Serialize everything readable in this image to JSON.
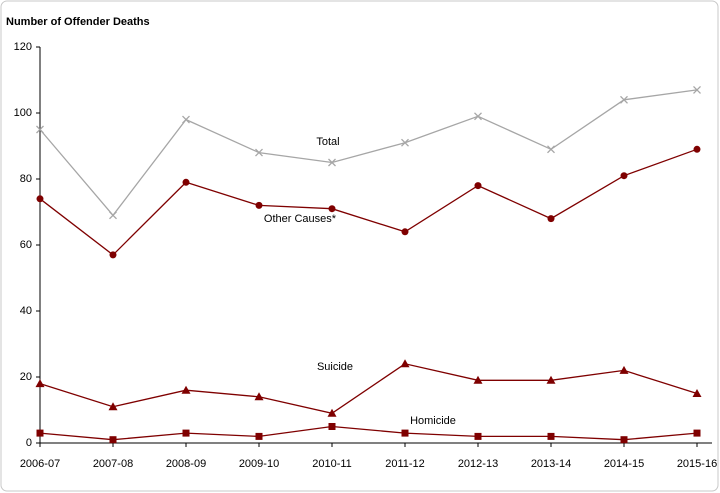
{
  "chart_data": {
    "type": "line",
    "title": "Number of Offender Deaths",
    "categories": [
      "2006-07",
      "2007-08",
      "2008-09",
      "2009-10",
      "2010-11",
      "2011-12",
      "2012-13",
      "2013-14",
      "2014-15",
      "2015-16"
    ],
    "series": [
      {
        "name": "Total",
        "color": "#a6a6a6",
        "marker": "x",
        "values": [
          95,
          69,
          98,
          88,
          85,
          91,
          99,
          89,
          104,
          107
        ]
      },
      {
        "name": "Other Causes*",
        "color": "#7f0000",
        "marker": "circle",
        "values": [
          74,
          57,
          79,
          72,
          71,
          64,
          78,
          68,
          81,
          89
        ]
      },
      {
        "name": "Suicide",
        "color": "#7f0000",
        "marker": "triangle",
        "values": [
          18,
          11,
          16,
          14,
          9,
          24,
          19,
          19,
          22,
          15
        ]
      },
      {
        "name": "Homicide",
        "color": "#7f0000",
        "marker": "square",
        "values": [
          3,
          1,
          3,
          2,
          5,
          3,
          2,
          2,
          1,
          3
        ]
      }
    ],
    "ylim": [
      0,
      120
    ],
    "yticks": [
      0,
      20,
      40,
      60,
      80,
      100,
      120
    ]
  }
}
